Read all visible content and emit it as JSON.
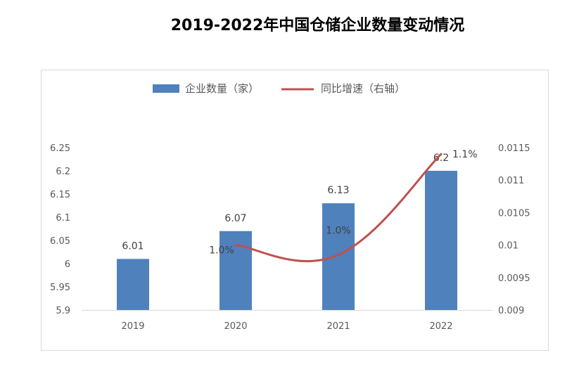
{
  "title": "2019-2022年中国仓储企业数量变动情况",
  "chart_data": {
    "type": "bar",
    "categories": [
      "2019",
      "2020",
      "2021",
      "2022"
    ],
    "series": [
      {
        "name": "企业数量（家）",
        "type": "bar",
        "axis": "left",
        "values": [
          6.01,
          6.07,
          6.13,
          6.2
        ],
        "color": "#4f81bd",
        "data_labels": [
          "6.01",
          "6.07",
          "6.13",
          "6.2"
        ]
      },
      {
        "name": "同比增速（右轴）",
        "type": "line",
        "axis": "right",
        "values": [
          null,
          0.01,
          0.00985,
          0.0114
        ],
        "color": "#c0504d",
        "data_labels": [
          "",
          "1.0%",
          "1.0%",
          "1.1%"
        ]
      }
    ],
    "ylim": [
      5.9,
      6.25
    ],
    "yticks": [
      "6.25",
      "6.2",
      "6.15",
      "6.1",
      "6.05",
      "6",
      "5.95",
      "5.9"
    ],
    "y2lim": [
      0.009,
      0.0115
    ],
    "y2ticks": [
      "0.0115",
      "0.011",
      "0.0105",
      "0.01",
      "0.0095",
      "0.009"
    ],
    "legend_position": "top",
    "grid": false
  }
}
